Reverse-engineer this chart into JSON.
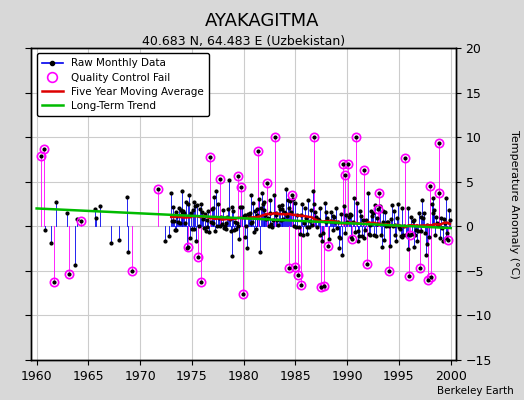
{
  "title": "AYAKAGITMA",
  "subtitle": "40.683 N, 64.483 E (Uzbekistan)",
  "ylabel": "Temperature Anomaly (°C)",
  "watermark": "Berkeley Earth",
  "xlim": [
    1959.5,
    2000.5
  ],
  "ylim": [
    -15,
    20
  ],
  "yticks": [
    -15,
    -10,
    -5,
    0,
    5,
    10,
    15,
    20
  ],
  "xticks": [
    1960,
    1965,
    1970,
    1975,
    1980,
    1985,
    1990,
    1995,
    2000
  ],
  "bg_color": "#d8d8d8",
  "plot_bg": "#ffffff",
  "line_color": "#0000ee",
  "marker_color": "#000000",
  "qc_color": "#ff00ff",
  "ma_color": "#dd0000",
  "trend_color": "#00bb00",
  "seed": 12,
  "start_year": 1960,
  "end_year": 2000
}
